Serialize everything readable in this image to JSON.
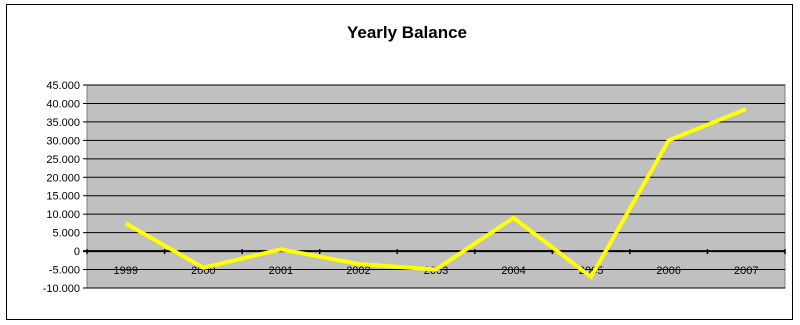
{
  "chart_data": {
    "type": "line",
    "title": "Yearly Balance",
    "xlabel": "",
    "ylabel": "",
    "categories": [
      "1999",
      "2000",
      "2001",
      "2002",
      "2003",
      "2004",
      "2005",
      "2006",
      "2007"
    ],
    "series": [
      {
        "values": [
          7500,
          -4500,
          500,
          -3500,
          -5000,
          9000,
          -7000,
          30000,
          38500
        ]
      }
    ],
    "ylim": [
      -10000,
      45000
    ],
    "yticks": [
      -10000,
      -5000,
      0,
      5000,
      10000,
      15000,
      20000,
      25000,
      30000,
      35000,
      40000,
      45000
    ],
    "ytick_labels": [
      "-10.000",
      "-5.000",
      "0",
      "5.000",
      "10.000",
      "15.000",
      "20.000",
      "25.000",
      "30.000",
      "35.000",
      "40.000",
      "45.000"
    ],
    "grid": true,
    "legend": "none",
    "colors": {
      "line": "#ffff00",
      "plot_background": "#c0c0c0",
      "gridline": "#000000"
    }
  }
}
